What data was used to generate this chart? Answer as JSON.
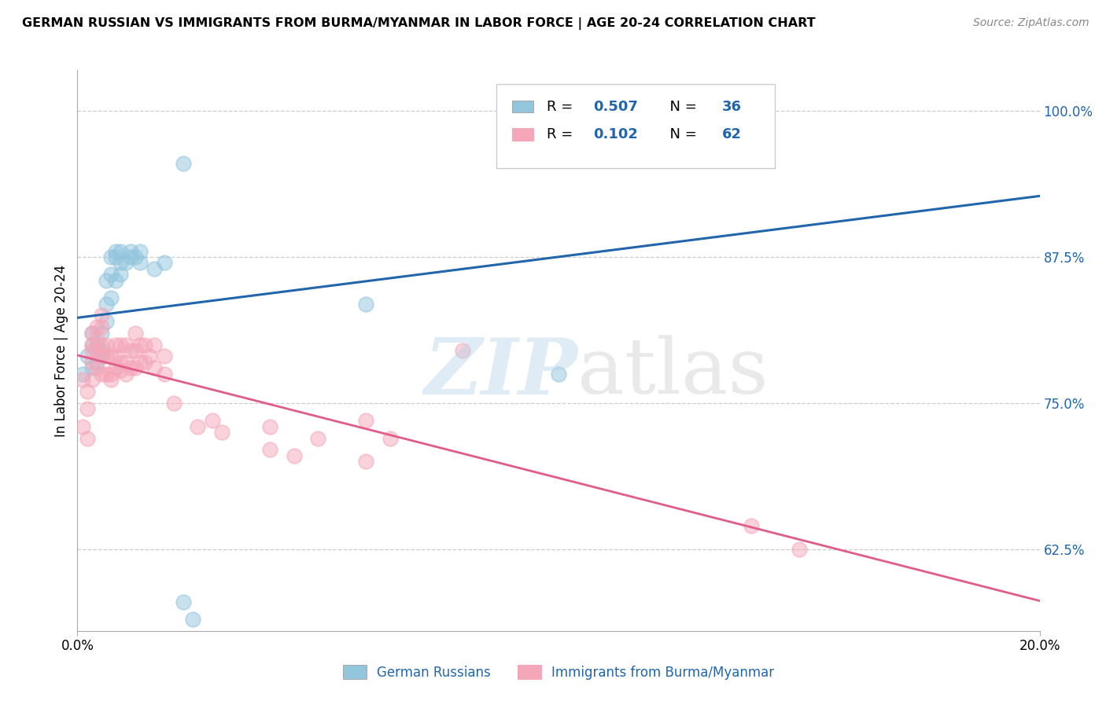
{
  "title": "GERMAN RUSSIAN VS IMMIGRANTS FROM BURMA/MYANMAR IN LABOR FORCE | AGE 20-24 CORRELATION CHART",
  "source": "Source: ZipAtlas.com",
  "ylabel": "In Labor Force | Age 20-24",
  "ytick_labels": [
    "62.5%",
    "75.0%",
    "87.5%",
    "100.0%"
  ],
  "ytick_vals": [
    0.625,
    0.75,
    0.875,
    1.0
  ],
  "xlim": [
    0.0,
    0.2
  ],
  "ylim": [
    0.555,
    1.035
  ],
  "series1_color": "#92c5de",
  "series2_color": "#f4a7b9",
  "line1_color": "#2166ac",
  "line2_color": "#e05c8a",
  "blue_scatter_x": [
    0.001,
    0.002,
    0.003,
    0.003,
    0.003,
    0.004,
    0.004,
    0.005,
    0.005,
    0.005,
    0.006,
    0.006,
    0.006,
    0.007,
    0.007,
    0.007,
    0.008,
    0.008,
    0.008,
    0.009,
    0.009,
    0.009,
    0.01,
    0.011,
    0.011,
    0.012,
    0.013,
    0.013,
    0.016,
    0.018,
    0.022,
    0.022,
    0.024,
    0.06,
    0.1,
    0.13
  ],
  "blue_scatter_y": [
    0.775,
    0.79,
    0.78,
    0.8,
    0.81,
    0.785,
    0.8,
    0.79,
    0.795,
    0.81,
    0.82,
    0.835,
    0.855,
    0.84,
    0.86,
    0.875,
    0.855,
    0.875,
    0.88,
    0.86,
    0.87,
    0.88,
    0.87,
    0.875,
    0.88,
    0.875,
    0.87,
    0.88,
    0.865,
    0.87,
    0.58,
    0.955,
    0.565,
    0.835,
    0.775,
    1.0
  ],
  "pink_scatter_x": [
    0.001,
    0.001,
    0.002,
    0.002,
    0.002,
    0.003,
    0.003,
    0.003,
    0.003,
    0.003,
    0.004,
    0.004,
    0.004,
    0.004,
    0.005,
    0.005,
    0.005,
    0.005,
    0.005,
    0.006,
    0.006,
    0.006,
    0.007,
    0.007,
    0.007,
    0.008,
    0.008,
    0.008,
    0.009,
    0.009,
    0.009,
    0.01,
    0.01,
    0.01,
    0.011,
    0.011,
    0.012,
    0.012,
    0.012,
    0.013,
    0.013,
    0.014,
    0.014,
    0.015,
    0.016,
    0.016,
    0.018,
    0.018,
    0.02,
    0.025,
    0.028,
    0.03,
    0.04,
    0.04,
    0.045,
    0.05,
    0.06,
    0.06,
    0.065,
    0.08,
    0.14,
    0.15
  ],
  "pink_scatter_y": [
    0.73,
    0.77,
    0.72,
    0.745,
    0.76,
    0.77,
    0.785,
    0.795,
    0.8,
    0.81,
    0.78,
    0.795,
    0.805,
    0.815,
    0.775,
    0.79,
    0.8,
    0.815,
    0.825,
    0.775,
    0.79,
    0.8,
    0.77,
    0.775,
    0.79,
    0.78,
    0.79,
    0.8,
    0.778,
    0.785,
    0.8,
    0.775,
    0.785,
    0.8,
    0.78,
    0.795,
    0.78,
    0.795,
    0.81,
    0.785,
    0.8,
    0.785,
    0.8,
    0.79,
    0.78,
    0.8,
    0.775,
    0.79,
    0.75,
    0.73,
    0.735,
    0.725,
    0.71,
    0.73,
    0.705,
    0.72,
    0.7,
    0.735,
    0.72,
    0.795,
    0.645,
    0.625
  ]
}
